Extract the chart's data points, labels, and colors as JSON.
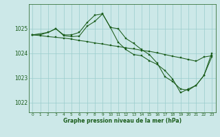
{
  "title": "Graphe pression niveau de la mer (hPa)",
  "bg_color": "#cce8e8",
  "grid_color": "#99cccc",
  "line_color": "#1a5c1a",
  "marker_color": "#1a5c1a",
  "xlim": [
    -0.5,
    23.5
  ],
  "ylim": [
    1021.6,
    1026.0
  ],
  "yticks": [
    1022,
    1023,
    1024,
    1025
  ],
  "xticks": [
    0,
    1,
    2,
    3,
    4,
    5,
    6,
    7,
    8,
    9,
    10,
    11,
    12,
    13,
    14,
    15,
    16,
    17,
    18,
    19,
    20,
    21,
    22,
    23
  ],
  "series1": {
    "x": [
      0,
      1,
      2,
      3,
      4,
      5,
      6,
      7,
      8,
      9,
      10,
      11,
      12,
      13,
      14,
      15,
      16,
      17,
      18,
      19,
      20,
      21,
      22,
      23
    ],
    "y": [
      1024.75,
      1024.75,
      1024.85,
      1025.0,
      1024.75,
      1024.75,
      1024.85,
      1025.25,
      1025.55,
      1025.6,
      1025.05,
      1025.0,
      1024.6,
      1024.4,
      1024.15,
      1023.95,
      1023.6,
      1023.05,
      1022.85,
      1022.55,
      1022.5,
      1022.7,
      1023.1,
      1023.85
    ]
  },
  "series2": {
    "x": [
      0,
      1,
      2,
      3,
      4,
      5,
      6,
      7,
      8,
      9,
      10,
      11,
      12,
      13,
      14,
      15,
      16,
      17,
      18,
      19,
      20,
      21,
      22,
      23
    ],
    "y": [
      1024.75,
      1024.72,
      1024.68,
      1024.65,
      1024.62,
      1024.58,
      1024.52,
      1024.48,
      1024.42,
      1024.38,
      1024.32,
      1024.28,
      1024.22,
      1024.18,
      1024.12,
      1024.08,
      1024.02,
      1023.95,
      1023.88,
      1023.82,
      1023.75,
      1023.68,
      1023.85,
      1023.9
    ]
  },
  "series3": {
    "x": [
      0,
      2,
      3,
      4,
      5,
      6,
      7,
      8,
      9,
      10,
      11,
      12,
      13,
      14,
      15,
      16,
      17,
      18,
      19,
      20,
      21,
      22,
      23
    ],
    "y": [
      1024.75,
      1024.85,
      1025.0,
      1024.72,
      1024.68,
      1024.7,
      1025.1,
      1025.3,
      1025.6,
      1025.05,
      1024.45,
      1024.15,
      1023.95,
      1023.9,
      1023.7,
      1023.55,
      1023.3,
      1022.95,
      1022.4,
      1022.55,
      1022.7,
      1023.1,
      1024.0
    ]
  }
}
